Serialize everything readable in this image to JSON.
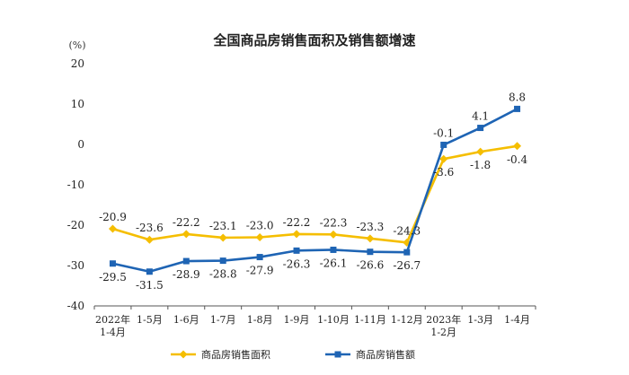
{
  "chart_data": {
    "type": "line",
    "title": "全国商品房销售面积及销售额增速",
    "ylabel": "(%)",
    "ylim": [
      -40,
      20
    ],
    "yticks": [
      20,
      10,
      0,
      -10,
      -20,
      -30,
      -40
    ],
    "grid": false,
    "legend_position": "bottom",
    "categories": [
      "2022年 1-4月",
      "1-5月",
      "1-6月",
      "1-7月",
      "1-8月",
      "1-9月",
      "1-10月",
      "1-11月",
      "1-12月",
      "2023年 1-2月",
      "1-3月",
      "1-4月"
    ],
    "category_lines": [
      [
        "2022年",
        "1-4月"
      ],
      [
        "1-5月"
      ],
      [
        "1-6月"
      ],
      [
        "1-7月"
      ],
      [
        "1-8月"
      ],
      [
        "1-9月"
      ],
      [
        "1-10月"
      ],
      [
        "1-11月"
      ],
      [
        "1-12月"
      ],
      [
        "2023年",
        "1-2月"
      ],
      [
        "1-3月"
      ],
      [
        "1-4月"
      ]
    ],
    "series": [
      {
        "name": "商品房销售面积",
        "color": "#F5BE00",
        "marker": "diamond",
        "values": [
          -20.9,
          -23.6,
          -22.2,
          -23.1,
          -23.0,
          -22.2,
          -22.3,
          -23.3,
          -24.3,
          -3.6,
          -1.8,
          -0.4
        ],
        "labels": [
          "-20.9",
          "-23.6",
          "-22.2",
          "-23.1",
          "-23.0",
          "-22.2",
          "-22.3",
          "-23.3",
          "-24.3",
          "-3.6",
          "-1.8",
          "-0.4"
        ],
        "label_positions": [
          "above",
          "above",
          "above",
          "above",
          "above",
          "above",
          "above",
          "above",
          "above",
          "below",
          "below",
          "below"
        ]
      },
      {
        "name": "商品房销售额",
        "color": "#1E64B4",
        "marker": "square",
        "values": [
          -29.5,
          -31.5,
          -28.9,
          -28.8,
          -27.9,
          -26.3,
          -26.1,
          -26.6,
          -26.7,
          -0.1,
          4.1,
          8.8
        ],
        "labels": [
          "-29.5",
          "-31.5",
          "-28.9",
          "-28.8",
          "-27.9",
          "-26.3",
          "-26.1",
          "-26.6",
          "-26.7",
          "-0.1",
          "4.1",
          "8.8"
        ],
        "label_positions": [
          "below",
          "below",
          "below",
          "below",
          "below",
          "below",
          "below",
          "below",
          "below",
          "above",
          "above",
          "above"
        ]
      }
    ]
  }
}
